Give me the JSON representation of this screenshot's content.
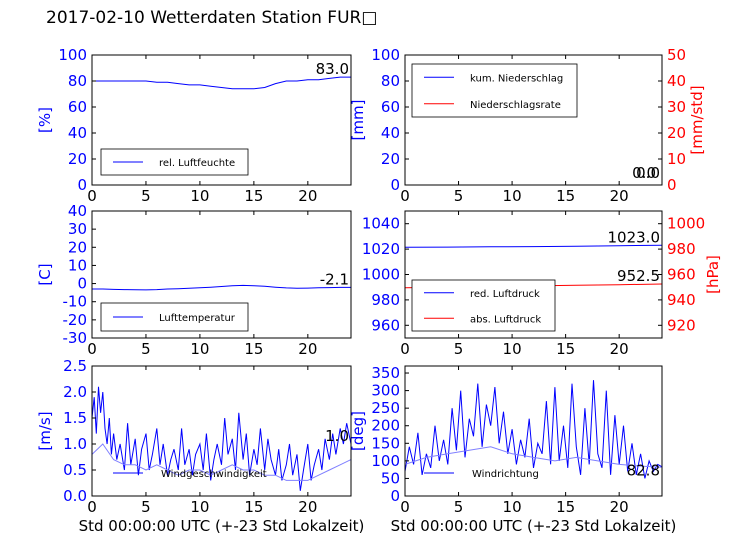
{
  "title": "2017-02-10 Wetterdaten Station FUR",
  "title_glyph": "□",
  "colors": {
    "primary": "#0000ff",
    "secondary": "#ff0000",
    "light": "#8080ff",
    "axis": "#000000"
  },
  "chart_data": [
    {
      "id": "humidity",
      "type": "line",
      "xlim": [
        0,
        24
      ],
      "ylim": [
        0,
        100
      ],
      "xticks": [
        0,
        5,
        10,
        15,
        20
      ],
      "yticks": [
        0,
        20,
        40,
        60,
        80,
        100
      ],
      "ylabel": "[%]",
      "xlabel": "",
      "legend": "bottom-left",
      "series": [
        {
          "name": "rel. Luftfeuchte",
          "color": "#0000ff",
          "x": [
            0,
            1,
            2,
            3,
            4,
            5,
            6,
            7,
            8,
            9,
            10,
            11,
            12,
            13,
            14,
            15,
            16,
            17,
            18,
            19,
            20,
            21,
            22,
            23,
            24
          ],
          "y": [
            80,
            80,
            80,
            80,
            80,
            80,
            79,
            79,
            78,
            77,
            77,
            76,
            75,
            74,
            74,
            74,
            75,
            78,
            80,
            80,
            81,
            81,
            82,
            83,
            83
          ]
        }
      ],
      "last_value": "83.0"
    },
    {
      "id": "precipitation",
      "type": "line",
      "xlim": [
        0,
        24
      ],
      "ylim": [
        0,
        100
      ],
      "ylim_right": [
        0,
        50
      ],
      "xticks": [
        0,
        5,
        10,
        15,
        20
      ],
      "yticks": [
        0,
        20,
        40,
        60,
        80,
        100
      ],
      "yticks_right": [
        0,
        10,
        20,
        30,
        40,
        50
      ],
      "ylabel": "[mm]",
      "ylabel_right": "[mm/std]",
      "xlabel": "",
      "legend": "top-left",
      "series": [
        {
          "name": "kum. Niederschlag",
          "color": "#0000ff",
          "axis": "left",
          "x": [
            0,
            24
          ],
          "y": [
            0,
            0
          ]
        },
        {
          "name": "Niederschlagsrate",
          "color": "#ff0000",
          "axis": "right",
          "x": [
            0,
            24
          ],
          "y": [
            0,
            0
          ]
        }
      ],
      "last_value": "0.0",
      "last_value_2": "0.0"
    },
    {
      "id": "temperature",
      "type": "line",
      "xlim": [
        0,
        24
      ],
      "ylim": [
        -30,
        40
      ],
      "xticks": [
        0,
        5,
        10,
        15,
        20
      ],
      "yticks": [
        -30,
        -20,
        -10,
        0,
        10,
        20,
        30,
        40
      ],
      "ylabel": "[C]",
      "xlabel": "",
      "legend": "bottom-left",
      "series": [
        {
          "name": "Lufttemperatur",
          "color": "#0000ff",
          "x": [
            0,
            1,
            2,
            3,
            4,
            5,
            6,
            7,
            8,
            9,
            10,
            11,
            12,
            13,
            14,
            15,
            16,
            17,
            18,
            19,
            20,
            21,
            22,
            23,
            24
          ],
          "y": [
            -3,
            -3,
            -3.2,
            -3.3,
            -3.4,
            -3.5,
            -3.3,
            -3,
            -2.8,
            -2.6,
            -2.3,
            -2,
            -1.6,
            -1.2,
            -1,
            -1.2,
            -1.5,
            -2,
            -2.4,
            -2.6,
            -2.5,
            -2.3,
            -2.2,
            -2.1,
            -2.1
          ]
        }
      ],
      "last_value": "-2.1"
    },
    {
      "id": "pressure",
      "type": "line",
      "xlim": [
        0,
        24
      ],
      "ylim": [
        950,
        1050
      ],
      "ylim_right": [
        910,
        1010
      ],
      "xticks": [
        0,
        5,
        10,
        15,
        20
      ],
      "yticks": [
        960,
        980,
        1000,
        1020,
        1040
      ],
      "yticks_right": [
        920,
        940,
        960,
        980,
        1000
      ],
      "ylabel": "",
      "ylabel_right": "[hPa]",
      "xlabel": "",
      "legend": "bottom-left",
      "series": [
        {
          "name": "red. Luftdruck",
          "color": "#0000ff",
          "axis": "left",
          "x": [
            0,
            4,
            8,
            12,
            16,
            20,
            24
          ],
          "y": [
            1021.5,
            1021.6,
            1021.8,
            1022,
            1022.3,
            1022.7,
            1023
          ]
        },
        {
          "name": "abs. Luftdruck",
          "color": "#ff0000",
          "axis": "right",
          "x": [
            0,
            4,
            8,
            12,
            16,
            20,
            24
          ],
          "y": [
            949.5,
            950,
            950.5,
            951,
            951.5,
            952,
            952.5
          ]
        }
      ],
      "last_value": "1023.0",
      "last_value_2": "952.5"
    },
    {
      "id": "windspeed",
      "type": "line",
      "xlim": [
        0,
        24
      ],
      "ylim": [
        0,
        2.5
      ],
      "xticks": [
        0,
        5,
        10,
        15,
        20
      ],
      "yticks": [
        0.0,
        0.5,
        1.0,
        1.5,
        2.0,
        2.5
      ],
      "ylabel": "[m/s]",
      "xlabel": "Std 00:00:00 UTC (+-23 Std Lokalzeit)",
      "legend": "bottom-left",
      "series": [
        {
          "name": "Windgeschwindigkeit",
          "color": "#0000ff",
          "x": [
            0,
            0.2,
            0.4,
            0.6,
            0.8,
            1,
            1.2,
            1.4,
            1.6,
            1.8,
            2,
            2.3,
            2.6,
            3,
            3.3,
            3.6,
            4,
            4.3,
            4.6,
            5,
            5.3,
            5.6,
            6,
            6.3,
            6.6,
            7,
            7.3,
            7.6,
            8,
            8.3,
            8.6,
            9,
            9.3,
            9.6,
            10,
            10.3,
            10.6,
            11,
            11.3,
            11.6,
            12,
            12.3,
            12.6,
            13,
            13.3,
            13.6,
            14,
            14.3,
            14.6,
            15,
            15.3,
            15.6,
            16,
            16.3,
            16.6,
            17,
            17.3,
            17.6,
            18,
            18.3,
            18.6,
            19,
            19.3,
            19.6,
            20,
            20.3,
            20.6,
            21,
            21.3,
            21.6,
            22,
            22.3,
            22.6,
            23,
            23.3,
            23.6,
            24
          ],
          "y": [
            1.5,
            1.9,
            1.2,
            2.1,
            1.6,
            2.0,
            1.3,
            1.0,
            1.5,
            0.8,
            1.2,
            0.7,
            1.0,
            0.5,
            1.4,
            0.6,
            1.1,
            0.4,
            0.9,
            1.2,
            0.5,
            0.8,
            1.3,
            0.6,
            1.0,
            0.4,
            0.7,
            0.9,
            0.5,
            1.3,
            0.6,
            0.9,
            0.4,
            0.8,
            1.0,
            0.5,
            1.2,
            0.3,
            0.7,
            1.0,
            0.6,
            1.5,
            0.8,
            1.1,
            0.5,
            1.6,
            0.7,
            1.2,
            0.4,
            0.9,
            0.6,
            1.3,
            0.5,
            1.1,
            0.7,
            0.4,
            0.9,
            0.3,
            0.6,
            1.0,
            0.4,
            0.8,
            0.1,
            0.5,
            1.0,
            0.3,
            0.6,
            0.9,
            0.5,
            1.1,
            0.7,
            1.2,
            0.8,
            1.3,
            1.0,
            1.4,
            1.0
          ]
        },
        {
          "name": "",
          "color": "#8080ff",
          "x": [
            0,
            1,
            2,
            3,
            4,
            5,
            6,
            7,
            8,
            9,
            10,
            11,
            12,
            13,
            14,
            15,
            16,
            17,
            18,
            19,
            20,
            21,
            22,
            23,
            24
          ],
          "y": [
            0.8,
            1.0,
            0.7,
            0.6,
            0.6,
            0.5,
            0.6,
            0.5,
            0.4,
            0.5,
            0.5,
            0.4,
            0.5,
            0.6,
            0.5,
            0.5,
            0.4,
            0.4,
            0.3,
            0.3,
            0.3,
            0.4,
            0.5,
            0.6,
            0.7
          ]
        }
      ],
      "last_value": "1.0"
    },
    {
      "id": "winddirection",
      "type": "line",
      "xlim": [
        0,
        24
      ],
      "ylim": [
        0,
        370
      ],
      "xticks": [
        0,
        5,
        10,
        15,
        20
      ],
      "yticks": [
        0,
        50,
        100,
        150,
        200,
        250,
        300,
        350
      ],
      "ylabel": "[deg]",
      "xlabel": "Std 00:00:00 UTC (+-23 Std Lokalzeit)",
      "legend": "bottom-left",
      "series": [
        {
          "name": "Windrichtung",
          "color": "#0000ff",
          "x": [
            0,
            0.4,
            0.8,
            1.2,
            1.6,
            2,
            2.4,
            2.8,
            3.2,
            3.6,
            4,
            4.4,
            4.8,
            5.2,
            5.6,
            6,
            6.4,
            6.8,
            7.2,
            7.6,
            8,
            8.4,
            8.8,
            9.2,
            9.6,
            10,
            10.4,
            10.8,
            11.2,
            11.6,
            12,
            12.4,
            12.8,
            13.2,
            13.6,
            14,
            14.4,
            14.8,
            15.2,
            15.6,
            16,
            16.4,
            16.8,
            17.2,
            17.6,
            18,
            18.4,
            18.8,
            19.2,
            19.6,
            20,
            20.4,
            20.8,
            21.2,
            21.6,
            22,
            22.4,
            22.8,
            23.2,
            23.6,
            24
          ],
          "y": [
            70,
            140,
            90,
            180,
            60,
            120,
            80,
            200,
            100,
            160,
            90,
            250,
            130,
            300,
            110,
            220,
            170,
            320,
            140,
            260,
            200,
            310,
            150,
            240,
            120,
            190,
            90,
            160,
            110,
            220,
            80,
            150,
            120,
            270,
            90,
            310,
            100,
            200,
            80,
            320,
            140,
            60,
            250,
            90,
            330,
            120,
            80,
            300,
            60,
            230,
            90,
            200,
            70,
            150,
            60,
            120,
            50,
            100,
            70,
            90,
            83
          ]
        },
        {
          "name": "",
          "color": "#8080ff",
          "x": [
            0,
            2,
            4,
            6,
            8,
            10,
            12,
            14,
            16,
            18,
            20,
            22,
            24
          ],
          "y": [
            90,
            110,
            120,
            130,
            140,
            120,
            110,
            100,
            110,
            100,
            90,
            85,
            82
          ]
        }
      ],
      "last_value": "82.8"
    }
  ]
}
